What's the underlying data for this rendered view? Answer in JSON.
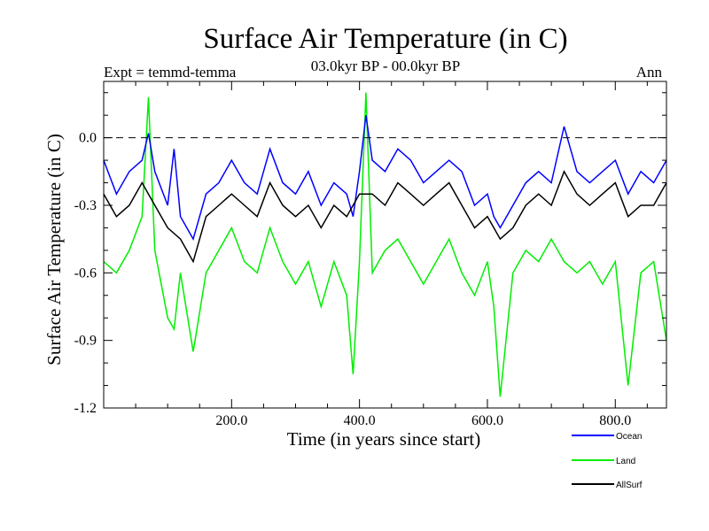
{
  "chart_data": {
    "type": "line",
    "title": "Surface Air Temperature (in C)",
    "subtitle": "03.0kyr BP - 00.0kyr BP",
    "experiment": "Expt = temmd-temma",
    "season": "Ann",
    "xlabel": "Time (in years since start)",
    "ylabel": "Surface Air Temperature (in C)",
    "xlim": [
      0,
      880
    ],
    "ylim": [
      -1.2,
      0.25
    ],
    "x_ticks": [
      200,
      400,
      600,
      800
    ],
    "x_tick_labels": [
      "200.0",
      "400.0",
      "600.0",
      "800.0"
    ],
    "y_ticks": [
      0.0,
      -0.3,
      -0.6,
      -0.9,
      -1.2
    ],
    "y_tick_labels": [
      "0.0",
      "-0.3",
      "-0.6",
      "-0.9",
      "-1.2"
    ],
    "reference_line": 0.0,
    "legend": [
      "Ocean",
      "Land",
      "AllSurf"
    ],
    "colors": {
      "Ocean": "#0000ff",
      "Land": "#00ee00",
      "AllSurf": "#000000"
    },
    "series": [
      {
        "name": "Land",
        "x": [
          0,
          20,
          40,
          60,
          70,
          80,
          100,
          110,
          120,
          140,
          160,
          180,
          200,
          220,
          240,
          260,
          280,
          300,
          320,
          340,
          360,
          380,
          390,
          400,
          410,
          420,
          440,
          460,
          480,
          500,
          520,
          540,
          560,
          580,
          600,
          610,
          620,
          640,
          660,
          680,
          700,
          720,
          740,
          760,
          780,
          800,
          820,
          840,
          860,
          880
        ],
        "values": [
          -0.55,
          -0.6,
          -0.5,
          -0.35,
          0.18,
          -0.5,
          -0.8,
          -0.85,
          -0.6,
          -0.95,
          -0.6,
          -0.5,
          -0.4,
          -0.55,
          -0.6,
          -0.4,
          -0.55,
          -0.65,
          -0.55,
          -0.75,
          -0.55,
          -0.7,
          -1.05,
          -0.55,
          0.2,
          -0.6,
          -0.5,
          -0.45,
          -0.55,
          -0.65,
          -0.55,
          -0.45,
          -0.6,
          -0.7,
          -0.55,
          -0.75,
          -1.15,
          -0.6,
          -0.5,
          -0.55,
          -0.45,
          -0.55,
          -0.6,
          -0.55,
          -0.65,
          -0.55,
          -1.1,
          -0.6,
          -0.55,
          -0.9
        ]
      },
      {
        "name": "Ocean",
        "x": [
          0,
          20,
          40,
          60,
          70,
          80,
          100,
          110,
          120,
          140,
          160,
          180,
          200,
          220,
          240,
          260,
          280,
          300,
          320,
          340,
          360,
          380,
          390,
          400,
          410,
          420,
          440,
          460,
          480,
          500,
          520,
          540,
          560,
          580,
          600,
          610,
          620,
          640,
          660,
          680,
          700,
          720,
          740,
          760,
          780,
          800,
          820,
          840,
          860,
          880
        ],
        "values": [
          -0.1,
          -0.25,
          -0.15,
          -0.1,
          0.02,
          -0.15,
          -0.3,
          -0.05,
          -0.35,
          -0.45,
          -0.25,
          -0.2,
          -0.1,
          -0.2,
          -0.25,
          -0.05,
          -0.2,
          -0.25,
          -0.15,
          -0.3,
          -0.2,
          -0.25,
          -0.35,
          -0.15,
          0.1,
          -0.1,
          -0.15,
          -0.05,
          -0.1,
          -0.2,
          -0.15,
          -0.1,
          -0.15,
          -0.3,
          -0.25,
          -0.35,
          -0.4,
          -0.3,
          -0.2,
          -0.15,
          -0.2,
          0.05,
          -0.15,
          -0.2,
          -0.15,
          -0.1,
          -0.25,
          -0.15,
          -0.2,
          -0.1
        ]
      },
      {
        "name": "AllSurf",
        "x": [
          0,
          20,
          40,
          60,
          80,
          100,
          120,
          140,
          160,
          180,
          200,
          220,
          240,
          260,
          280,
          300,
          320,
          340,
          360,
          380,
          400,
          420,
          440,
          460,
          480,
          500,
          520,
          540,
          560,
          580,
          600,
          620,
          640,
          660,
          680,
          700,
          720,
          740,
          760,
          780,
          800,
          820,
          840,
          860,
          880
        ],
        "values": [
          -0.25,
          -0.35,
          -0.3,
          -0.2,
          -0.3,
          -0.4,
          -0.45,
          -0.55,
          -0.35,
          -0.3,
          -0.25,
          -0.3,
          -0.35,
          -0.2,
          -0.3,
          -0.35,
          -0.3,
          -0.4,
          -0.3,
          -0.35,
          -0.25,
          -0.25,
          -0.3,
          -0.2,
          -0.25,
          -0.3,
          -0.25,
          -0.2,
          -0.3,
          -0.4,
          -0.35,
          -0.45,
          -0.4,
          -0.3,
          -0.25,
          -0.3,
          -0.15,
          -0.25,
          -0.3,
          -0.25,
          -0.2,
          -0.35,
          -0.3,
          -0.3,
          -0.2
        ]
      }
    ]
  }
}
